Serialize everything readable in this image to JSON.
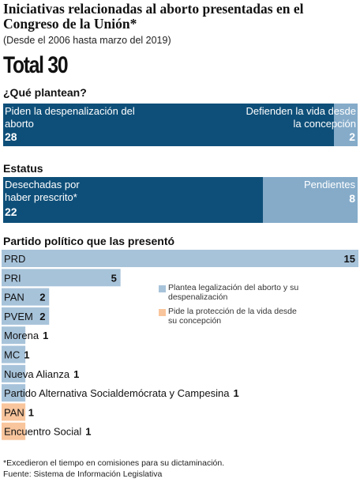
{
  "header": {
    "title": "Iniciativas relacionadas al aborto presentadas en el Congreso de la Unión*",
    "subtitle": "(Desde el 2006 hasta marzo del 2019)",
    "total": "Total 30"
  },
  "colors": {
    "dark_blue": "#0e4f79",
    "light_blue": "#85abc9",
    "orange": "#f9c59c"
  },
  "chart_data": [
    {
      "type": "bar",
      "title": "¿Qué plantean?",
      "orientation": "horizontal-stacked",
      "categories": [
        "Piden la despenalización del aborto",
        "Defienden la vida desde la concepción"
      ],
      "values": [
        28,
        2
      ],
      "total": 30
    },
    {
      "type": "bar",
      "title": "Estatus",
      "orientation": "horizontal-stacked",
      "categories": [
        "Desechadas por haber prescrito*",
        "Pendientes"
      ],
      "values": [
        22,
        8
      ],
      "total": 30
    },
    {
      "type": "bar",
      "title": "Partido político que las presentó",
      "orientation": "horizontal",
      "xlim": [
        0,
        15
      ],
      "legend": [
        {
          "label": "Plantea legalización del aborto y su despenalización",
          "color": "#a7c3da"
        },
        {
          "label": "Pide la protección de la vida desde su concepción",
          "color": "#f9c59c"
        }
      ],
      "categories": [
        "PRD",
        "PRI",
        "PAN",
        "PVEM",
        "Morena",
        "MC",
        "Nueva Alianza",
        "Partido Alternativa Socialdemócrata y Campesina",
        "PAN",
        "Encuentro Social"
      ],
      "values": [
        15,
        5,
        2,
        2,
        1,
        1,
        1,
        1,
        1,
        1
      ],
      "series_type": [
        "legalizacion",
        "legalizacion",
        "legalizacion",
        "legalizacion",
        "legalizacion",
        "legalizacion",
        "legalizacion",
        "legalizacion",
        "proteccion",
        "proteccion"
      ]
    }
  ],
  "footer": {
    "note": "*Excedieron el tiempo en comisiones para su dictaminación.",
    "source": "Fuente: Sistema de Información Legislativa"
  }
}
